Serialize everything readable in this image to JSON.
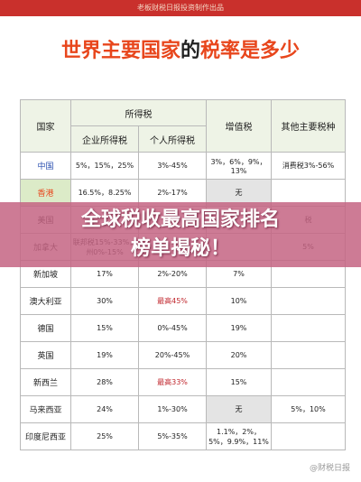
{
  "header": {
    "banner": "老板财税日报投资制作出品",
    "title_part1": "世界主要国家",
    "title_part2": "的",
    "title_part3": "税率是多少"
  },
  "table": {
    "head": {
      "country": "国家",
      "income_tax": "所得税",
      "corporate": "企业所得税",
      "personal": "个人所得税",
      "vat": "增值税",
      "other": "其他主要税种"
    },
    "rows": [
      [
        "中国",
        "5%，15%，25%",
        "3%-45%",
        "3%，6%，9%，13%",
        "消费税3%-56%"
      ],
      [
        "香港",
        "16.5%，8.25%",
        "2%-17%",
        "无",
        ""
      ],
      [
        "美国",
        "",
        "",
        "",
        "税"
      ],
      [
        "加拿大",
        "联邦税15%-33%，州0%-15%",
        "",
        "",
        "5%"
      ],
      [
        "新加坡",
        "17%",
        "2%-20%",
        "7%",
        ""
      ],
      [
        "澳大利亚",
        "30%",
        "最高45%",
        "10%",
        ""
      ],
      [
        "德国",
        "15%",
        "0%-45%",
        "19%",
        ""
      ],
      [
        "英国",
        "19%",
        "20%-45%",
        "20%",
        ""
      ],
      [
        "新西兰",
        "28%",
        "最高33%",
        "15%",
        ""
      ],
      [
        "马来西亚",
        "24%",
        "1%-30%",
        "无",
        "5%，10%"
      ],
      [
        "印度尼西亚",
        "25%",
        "5%-35%",
        "1.1%，2%，5%，9.9%，11%",
        ""
      ]
    ]
  },
  "overlay": {
    "line1": "全球税收最高国家排名",
    "line2": "榜单揭秘！"
  },
  "watermark": "@财税日报"
}
